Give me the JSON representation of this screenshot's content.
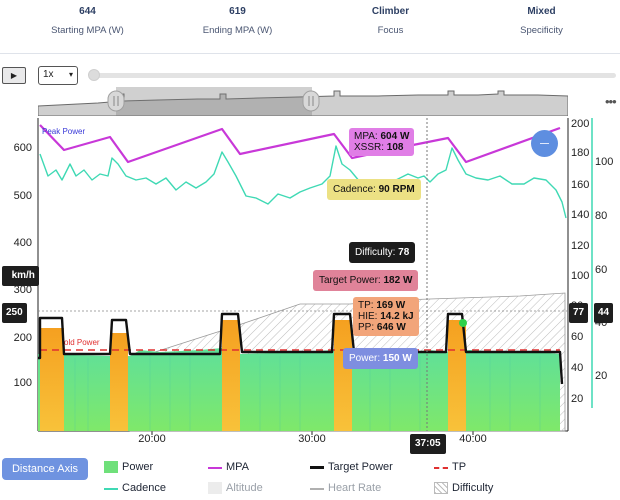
{
  "stats": [
    {
      "value": "644",
      "label": "Starting MPA (W)"
    },
    {
      "value": "619",
      "label": "Ending MPA (W)"
    },
    {
      "value": "Climber",
      "label": "Focus"
    },
    {
      "value": "Mixed",
      "label": "Specificity"
    }
  ],
  "playback": {
    "play_icon": "▶",
    "speed": "1x"
  },
  "chart": {
    "peak_power_label": "Peak Power",
    "threshold_label": "old Power",
    "left_ticks": [
      "600",
      "500",
      "400",
      "300",
      "200",
      "100"
    ],
    "right_ticks_a": [
      "200",
      "180",
      "160",
      "140",
      "120",
      "100",
      "80",
      "60",
      "40",
      "20"
    ],
    "right_ticks_b": [
      "100",
      "80",
      "60",
      "40",
      "20"
    ],
    "x_ticks": [
      "20:00",
      "30:00",
      "40:00"
    ],
    "cursor_time": "37:05",
    "left_badge_unit": "km/h",
    "left_badge_value": "250",
    "right_badge_a": "77",
    "right_badge_b": "44"
  },
  "tooltips": {
    "mpa_label": "MPA:",
    "mpa_value": "604 W",
    "xssr_label": "XSSR:",
    "xssr_value": "108",
    "cadence_label": "Cadence:",
    "cadence_value": "90 RPM",
    "difficulty_label": "Difficulty:",
    "difficulty_value": "78",
    "target_label": "Target Power:",
    "target_value": "182 W",
    "tp_label": "TP:",
    "tp_value": "169 W",
    "hie_label": "HIE:",
    "hie_value": "14.2 kJ",
    "pp_label": "PP:",
    "pp_value": "646 W",
    "power_label": "Power:",
    "power_value": "150 W"
  },
  "footer": {
    "distance_axis": "Distance Axis",
    "legend": {
      "power": "Power",
      "mpa": "MPA",
      "target_power": "Target Power",
      "tp": "TP",
      "cadence": "Cadence",
      "altitude": "Altitude",
      "heart_rate": "Heart Rate",
      "difficulty": "Difficulty"
    }
  },
  "colors": {
    "mpa": "#c838d8",
    "cadence": "#3fd9b4",
    "target": "#111111",
    "tp": "#e03030",
    "power_low": "#6fe07a",
    "power_high": "#f5a020",
    "accent": "#6f93e0"
  }
}
